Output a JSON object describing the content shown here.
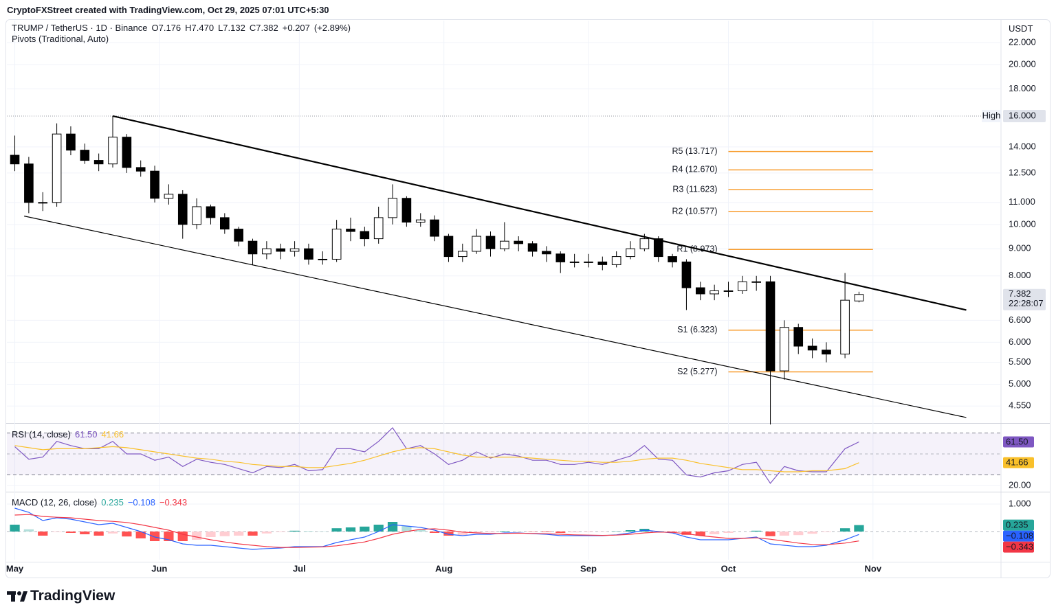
{
  "header": {
    "credit": "CryptoFXStreet created with TradingView.com, Oct 29, 2025 07:01 UTC+5:30"
  },
  "footer": {
    "brand": "TradingView"
  },
  "chart_data": [
    {
      "type": "candlestick",
      "title": "TRUMP / TetherUS · 1D · Binance",
      "subtitle": "Pivots (Traditional, Auto)",
      "unit": "USDT",
      "readout": [
        {
          "value": 7.176,
          "label": "O7.176"
        },
        {
          "value": 7.47,
          "label": "H7.470"
        },
        {
          "value": 7.132,
          "label": "L7.132"
        },
        {
          "value": 7.382,
          "label": "C7.382"
        },
        {
          "value": 0.207,
          "label": "+0.207"
        },
        {
          "value": 2.89,
          "label": "(+2.89%)"
        }
      ],
      "log": true,
      "grid": true,
      "up_color": "#ffffff",
      "down_color": "#000000",
      "xlim": [
        -1.7,
        211.3
      ],
      "xticks": [
        {
          "value": 0,
          "label": "May"
        },
        {
          "value": 31,
          "label": "Jun"
        },
        {
          "value": 61,
          "label": "Jul"
        },
        {
          "value": 92,
          "label": "Aug"
        },
        {
          "value": 123,
          "label": "Sep"
        },
        {
          "value": 153,
          "label": "Oct"
        },
        {
          "value": 184,
          "label": "Nov"
        }
      ],
      "ylim": [
        4.24,
        24.2
      ],
      "yticks": [
        {
          "value": 4.55,
          "label": "4.550"
        },
        {
          "value": 5,
          "label": "5.000"
        },
        {
          "value": 5.5,
          "label": "5.500"
        },
        {
          "value": 6,
          "label": "6.000"
        },
        {
          "value": 6.6,
          "label": "6.600"
        },
        {
          "value": 8,
          "label": "8.000"
        },
        {
          "value": 9,
          "label": "9.000"
        },
        {
          "value": 10,
          "label": "10.000"
        },
        {
          "value": 11,
          "label": "11.000"
        },
        {
          "value": 12.5,
          "label": "12.500"
        },
        {
          "value": 14,
          "label": "14.000"
        },
        {
          "value": 18,
          "label": "18.000"
        },
        {
          "value": 20,
          "label": "20.000"
        },
        {
          "value": 22,
          "label": "22.000"
        }
      ],
      "x": [
        0,
        3,
        6,
        9,
        12,
        15,
        18,
        21,
        24,
        27,
        30,
        33,
        36,
        39,
        42,
        45,
        48,
        51,
        54,
        57,
        60,
        63,
        66,
        69,
        72,
        75,
        78,
        81,
        84,
        87,
        90,
        93,
        96,
        99,
        102,
        105,
        108,
        111,
        114,
        117,
        120,
        123,
        126,
        129,
        132,
        135,
        138,
        141,
        144,
        147,
        150,
        153,
        156,
        159,
        162,
        165,
        168,
        171,
        174,
        178,
        181
      ],
      "open": [
        13.5,
        13.0,
        11.0,
        11.0,
        14.8,
        13.8,
        13.2,
        13.0,
        14.6,
        12.8,
        12.6,
        11.2,
        11.4,
        10.0,
        10.8,
        10.3,
        9.8,
        9.3,
        8.8,
        9.0,
        8.9,
        9.0,
        8.6,
        8.6,
        9.8,
        9.7,
        9.4,
        10.3,
        11.2,
        10.1,
        10.2,
        9.5,
        8.7,
        8.9,
        9.5,
        9.0,
        9.3,
        9.2,
        8.9,
        8.8,
        8.5,
        8.5,
        8.5,
        8.4,
        8.7,
        9.0,
        9.4,
        8.7,
        8.5,
        7.6,
        7.4,
        7.5,
        7.5,
        7.8,
        7.8,
        5.3,
        6.4,
        5.9,
        5.8,
        5.7,
        7.176
      ],
      "high": [
        14.7,
        13.4,
        11.5,
        15.5,
        15.3,
        14.2,
        13.6,
        16.0,
        14.8,
        13.2,
        12.9,
        11.9,
        11.6,
        11.2,
        10.9,
        10.5,
        9.9,
        9.4,
        9.3,
        9.2,
        9.3,
        9.2,
        8.9,
        10.2,
        10.3,
        9.9,
        10.8,
        11.9,
        11.3,
        10.5,
        10.4,
        9.6,
        9.2,
        9.8,
        9.7,
        10.1,
        9.5,
        9.3,
        9.1,
        8.9,
        8.8,
        8.8,
        8.7,
        8.9,
        9.3,
        9.6,
        9.5,
        8.8,
        8.6,
        7.8,
        7.7,
        7.8,
        8.0,
        8.0,
        8.0,
        6.6,
        6.5,
        6.1,
        6.0,
        8.1,
        7.47
      ],
      "low": [
        12.6,
        10.5,
        10.6,
        10.8,
        13.5,
        13.0,
        12.6,
        12.8,
        12.5,
        12.3,
        11.0,
        10.9,
        9.4,
        9.8,
        10.0,
        9.6,
        9.1,
        8.4,
        8.6,
        8.6,
        8.7,
        8.4,
        8.4,
        8.5,
        9.3,
        9.1,
        9.2,
        10.0,
        9.9,
        9.9,
        9.3,
        8.5,
        8.5,
        8.8,
        8.7,
        8.9,
        8.9,
        8.7,
        8.5,
        8.1,
        8.3,
        8.3,
        8.2,
        8.3,
        8.6,
        8.9,
        8.5,
        8.3,
        6.9,
        7.2,
        7.2,
        7.3,
        7.4,
        7.5,
        4.2,
        5.1,
        5.7,
        5.6,
        5.5,
        5.6,
        7.132
      ],
      "close": [
        13.0,
        11.0,
        11.0,
        14.8,
        13.8,
        13.2,
        13.0,
        14.6,
        12.8,
        12.6,
        11.2,
        11.4,
        10.0,
        10.8,
        10.3,
        9.8,
        9.3,
        8.8,
        9.0,
        8.9,
        9.0,
        8.6,
        8.6,
        9.8,
        9.7,
        9.4,
        10.3,
        11.2,
        10.1,
        10.2,
        9.5,
        8.7,
        8.9,
        9.5,
        9.0,
        9.3,
        9.2,
        8.9,
        8.8,
        8.5,
        8.5,
        8.5,
        8.4,
        8.7,
        9.0,
        9.4,
        8.7,
        8.5,
        7.6,
        7.4,
        7.5,
        7.5,
        7.8,
        7.8,
        5.3,
        6.4,
        5.9,
        5.8,
        5.7,
        7.2,
        7.382
      ],
      "pivot_color": "#f89c2c",
      "pivot_x": [
        153,
        184
      ],
      "pivots": [
        {
          "label": "R5 (13.717)",
          "value": 13.717
        },
        {
          "label": "R4 (12.670)",
          "value": 12.67
        },
        {
          "label": "R3 (11.623)",
          "value": 11.623
        },
        {
          "label": "R2 (10.577)",
          "value": 10.577
        },
        {
          "label": "R1 (8.973)",
          "value": 8.973
        },
        {
          "label": "S1 (6.323)",
          "value": 6.323
        },
        {
          "label": "S2 (5.277)",
          "value": 5.277
        }
      ],
      "trendlines": [
        {
          "x": [
            21,
            204
          ],
          "y": [
            16.0,
            6.9
          ],
          "width": 2.2
        },
        {
          "x": [
            2,
            204
          ],
          "y": [
            10.37,
            4.33
          ],
          "width": 1.2
        }
      ],
      "high_line": {
        "label": "High",
        "value": 16,
        "value_label": "16.000"
      },
      "last_price": {
        "value": 7.382,
        "label": "7.382",
        "countdown": "22:28:07"
      }
    },
    {
      "type": "line",
      "title": "RSI (14, close)",
      "ylim": [
        16.6,
        76.9
      ],
      "yticks": [
        {
          "value": 20,
          "label": "20.00"
        }
      ],
      "band": [
        30,
        70
      ],
      "midline": 50,
      "x": [
        0,
        3,
        6,
        9,
        12,
        15,
        18,
        21,
        24,
        27,
        30,
        33,
        36,
        39,
        42,
        45,
        48,
        51,
        54,
        57,
        60,
        63,
        66,
        69,
        72,
        75,
        78,
        81,
        84,
        87,
        90,
        93,
        96,
        99,
        102,
        105,
        108,
        111,
        114,
        117,
        120,
        123,
        126,
        129,
        132,
        135,
        138,
        141,
        144,
        147,
        150,
        153,
        156,
        159,
        162,
        165,
        168,
        171,
        174,
        178,
        181
      ],
      "series": [
        {
          "color": "#7e57c2",
          "last_label": "61.50",
          "values": [
            57,
            45,
            47,
            62,
            58,
            55,
            55,
            62,
            50,
            50,
            44,
            47,
            38,
            45,
            42,
            40,
            36,
            32,
            38,
            37,
            40,
            34,
            35,
            55,
            55,
            52,
            62,
            75,
            55,
            58,
            50,
            40,
            44,
            52,
            46,
            50,
            48,
            44,
            44,
            40,
            40,
            42,
            40,
            44,
            48,
            58,
            45,
            44,
            30,
            28,
            32,
            34,
            40,
            42,
            22,
            38,
            34,
            33,
            33,
            55,
            61.5
          ]
        },
        {
          "color": "#f9c02a",
          "last_label": "41.66",
          "values": [
            58,
            56,
            54,
            55,
            55,
            55,
            56,
            57,
            56,
            54,
            52,
            50,
            48,
            46,
            45,
            43,
            42,
            40,
            39,
            38,
            38,
            37,
            37,
            39,
            41,
            44,
            48,
            52,
            55,
            56,
            55,
            52,
            49,
            47,
            47,
            47,
            47,
            46,
            45,
            44,
            43,
            43,
            42,
            42,
            43,
            45,
            46,
            46,
            44,
            41,
            39,
            37,
            35,
            35,
            34,
            33,
            33,
            34,
            34,
            36,
            41.66
          ]
        }
      ]
    },
    {
      "type": "line",
      "title": "MACD (12, 26, close)",
      "ylim": [
        -1.025,
        1.35
      ],
      "yticks": [
        {
          "value": 1,
          "label": "1.000"
        }
      ],
      "midline": 0,
      "x": [
        0,
        3,
        6,
        9,
        12,
        15,
        18,
        21,
        24,
        27,
        30,
        33,
        36,
        39,
        42,
        45,
        48,
        51,
        54,
        57,
        60,
        63,
        66,
        69,
        72,
        75,
        78,
        81,
        84,
        87,
        90,
        93,
        96,
        99,
        102,
        105,
        108,
        111,
        114,
        117,
        120,
        123,
        126,
        129,
        132,
        135,
        138,
        141,
        144,
        147,
        150,
        153,
        156,
        159,
        162,
        165,
        168,
        171,
        174,
        178,
        181
      ],
      "series": [
        {
          "kind": "bar",
          "color": "#26a69a",
          "light_color": "#b2dfdb",
          "neg_color": "#ff5252",
          "neg_light_color": "#ffcdd2",
          "last_label": "0.235",
          "values": [
            0.25,
            0.08,
            -0.15,
            -0.02,
            -0.05,
            -0.1,
            -0.15,
            -0.07,
            -0.18,
            -0.25,
            -0.35,
            -0.35,
            -0.35,
            -0.3,
            -0.2,
            -0.17,
            -0.15,
            -0.15,
            -0.07,
            -0.02,
            0.03,
            0.02,
            0.01,
            0.12,
            0.15,
            0.18,
            0.25,
            0.35,
            0.2,
            0.07,
            -0.05,
            -0.15,
            -0.13,
            -0.05,
            -0.03,
            0.02,
            0.01,
            -0.01,
            -0.02,
            -0.05,
            -0.03,
            -0.02,
            -0.01,
            0.01,
            0.05,
            0.1,
            0.02,
            -0.02,
            -0.12,
            -0.15,
            -0.1,
            -0.05,
            0.0,
            0.03,
            -0.17,
            -0.15,
            -0.13,
            -0.08,
            -0.02,
            0.12,
            0.235
          ]
        },
        {
          "color": "#2962ff",
          "last_label": "−0.108",
          "values": [
            0.85,
            0.7,
            0.4,
            0.5,
            0.45,
            0.35,
            0.25,
            0.3,
            0.15,
            0.0,
            -0.2,
            -0.3,
            -0.45,
            -0.5,
            -0.5,
            -0.55,
            -0.6,
            -0.65,
            -0.62,
            -0.6,
            -0.55,
            -0.55,
            -0.55,
            -0.4,
            -0.3,
            -0.2,
            0.0,
            0.25,
            0.2,
            0.15,
            0.05,
            -0.1,
            -0.15,
            -0.1,
            -0.1,
            -0.05,
            -0.05,
            -0.08,
            -0.1,
            -0.15,
            -0.15,
            -0.15,
            -0.15,
            -0.12,
            -0.05,
            0.05,
            0.0,
            -0.05,
            -0.2,
            -0.3,
            -0.3,
            -0.3,
            -0.25,
            -0.2,
            -0.45,
            -0.5,
            -0.55,
            -0.55,
            -0.5,
            -0.3,
            -0.108
          ]
        },
        {
          "color": "#f23645",
          "last_label": "−0.343",
          "values": [
            0.6,
            0.62,
            0.55,
            0.52,
            0.5,
            0.45,
            0.4,
            0.37,
            0.33,
            0.25,
            0.15,
            0.05,
            -0.1,
            -0.2,
            -0.3,
            -0.38,
            -0.45,
            -0.5,
            -0.55,
            -0.58,
            -0.58,
            -0.57,
            -0.56,
            -0.52,
            -0.45,
            -0.38,
            -0.25,
            -0.1,
            0.0,
            0.08,
            0.1,
            0.05,
            -0.02,
            -0.05,
            -0.07,
            -0.07,
            -0.06,
            -0.07,
            -0.08,
            -0.1,
            -0.12,
            -0.13,
            -0.14,
            -0.13,
            -0.1,
            -0.05,
            -0.02,
            -0.03,
            -0.08,
            -0.15,
            -0.2,
            -0.25,
            -0.25,
            -0.23,
            -0.28,
            -0.35,
            -0.42,
            -0.47,
            -0.48,
            -0.42,
            -0.343
          ]
        }
      ]
    }
  ]
}
